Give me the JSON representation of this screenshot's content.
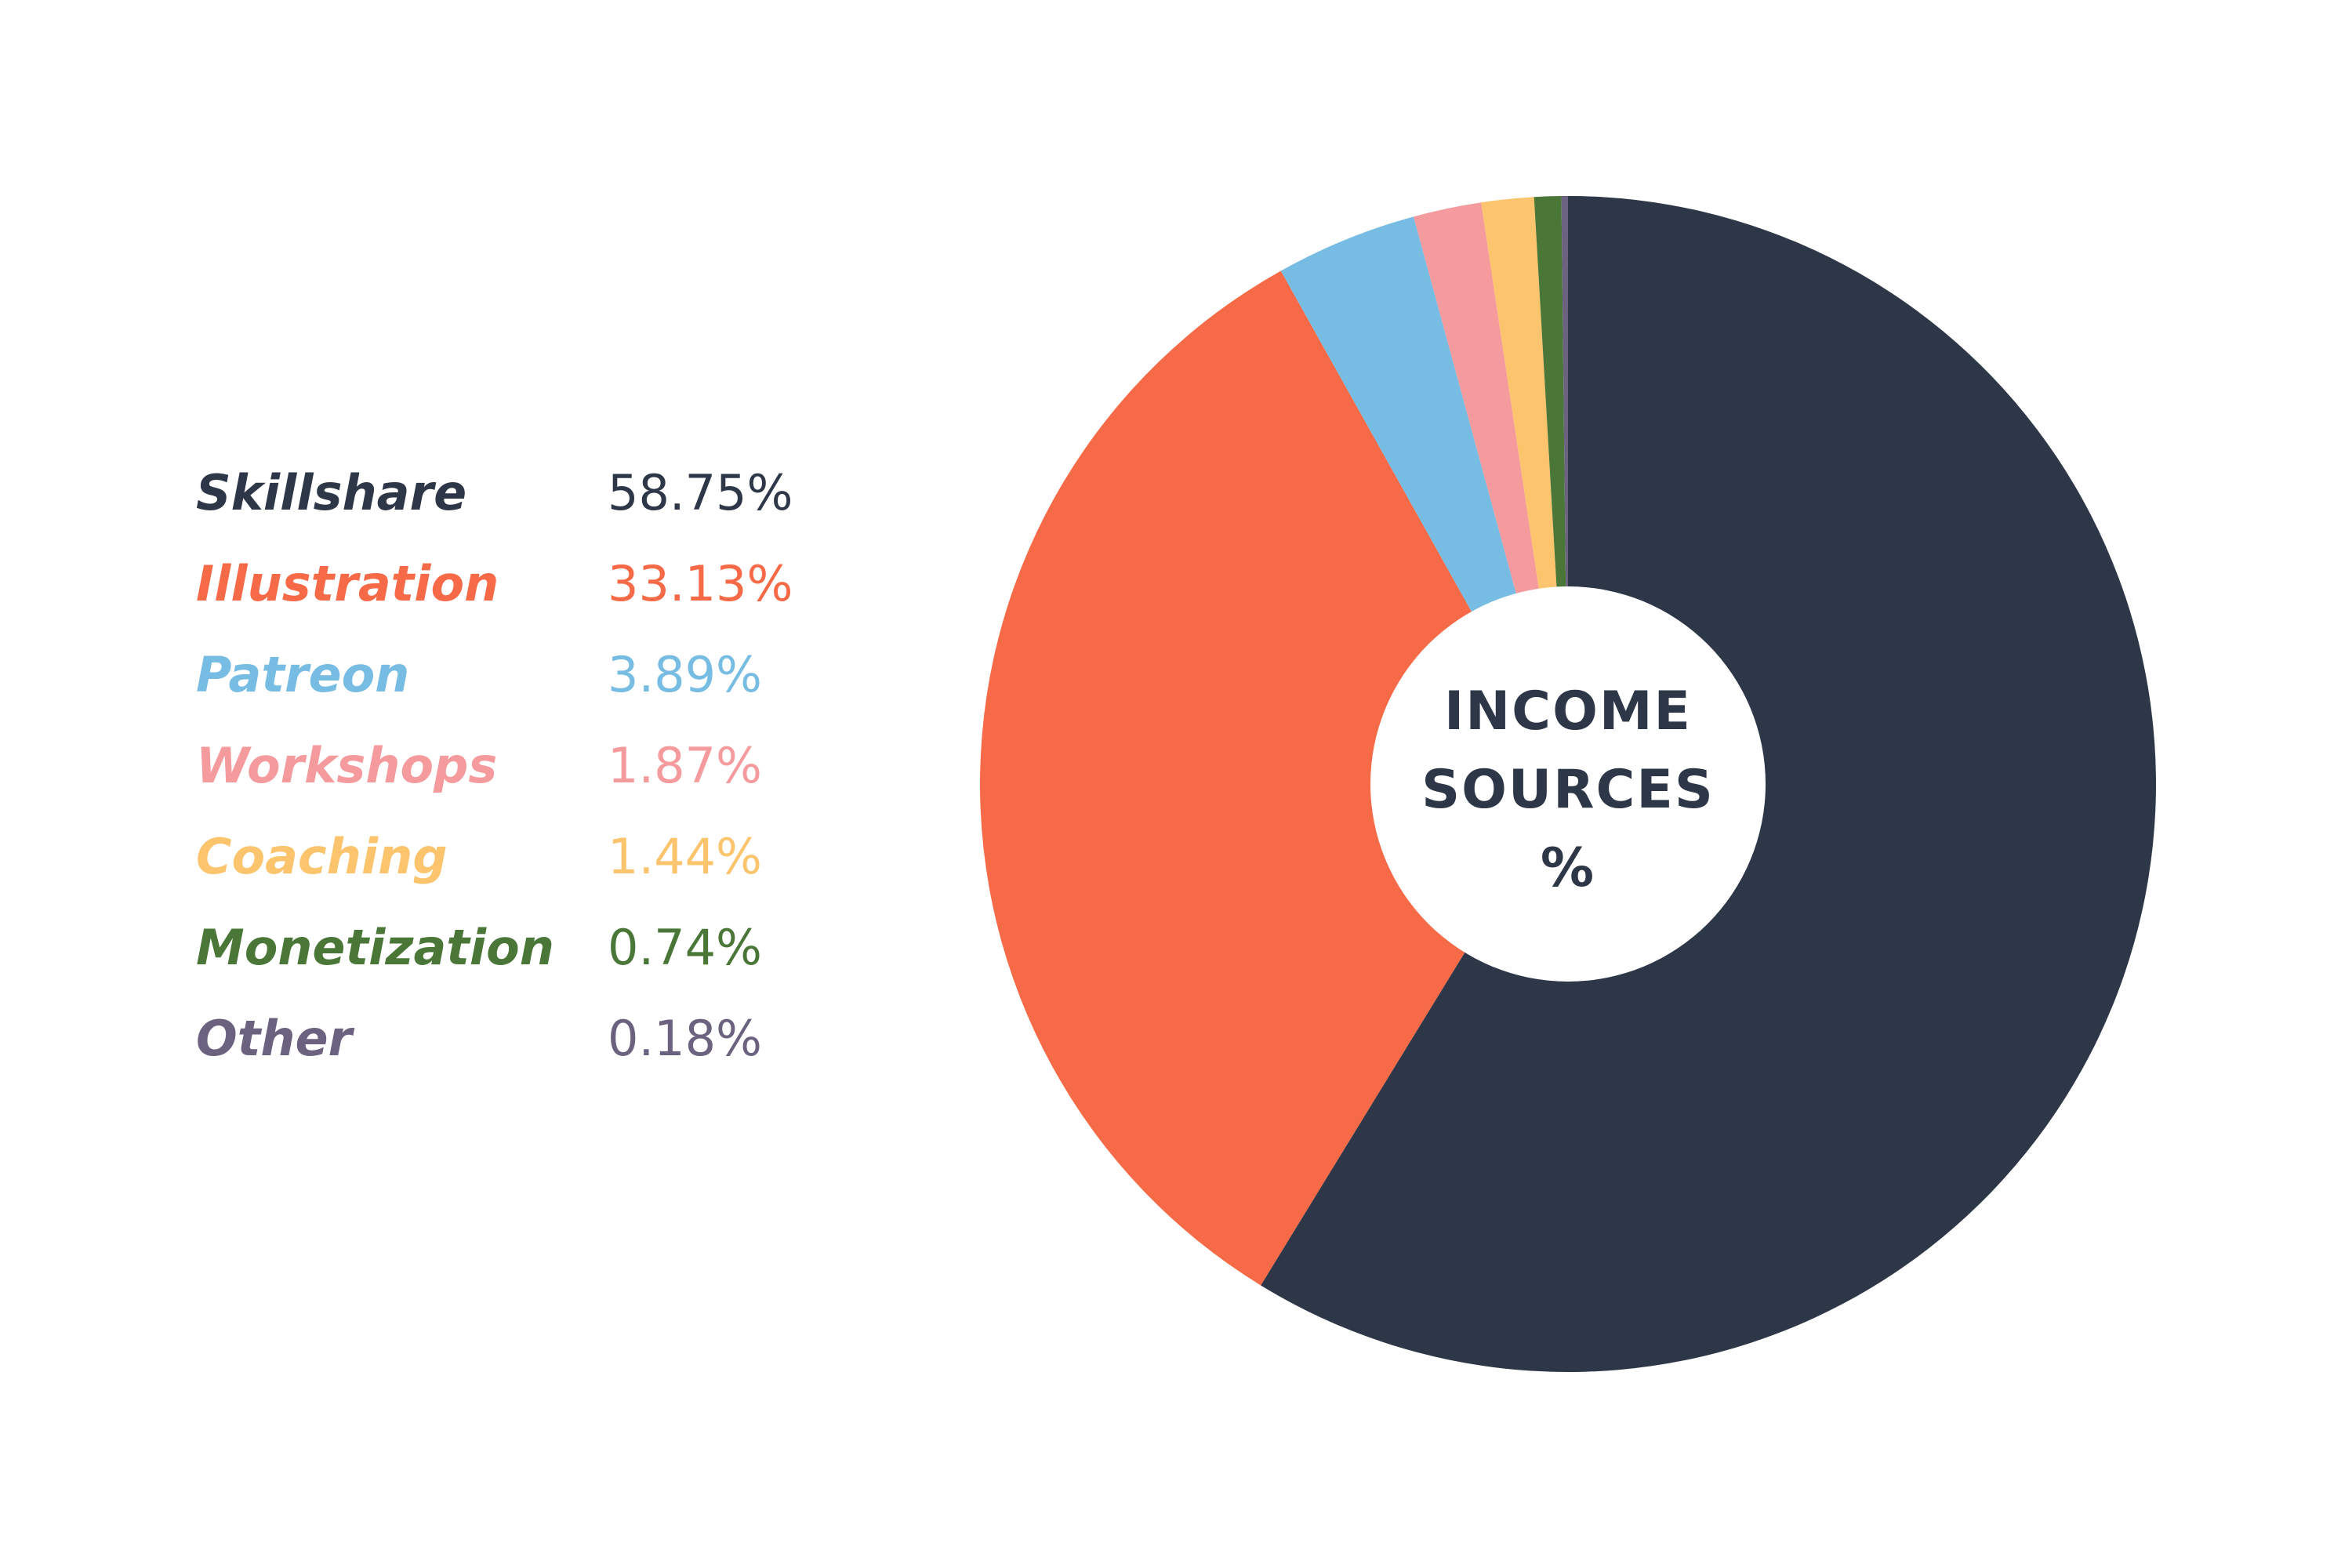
{
  "chart_data": {
    "type": "pie",
    "title": "INCOME SOURCES %",
    "title_lines": [
      "INCOME",
      "SOURCES",
      "%"
    ],
    "legend_placement": "left",
    "slices": [
      {
        "label": "Skillshare",
        "value": 58.75,
        "display": "58.75%",
        "color": "#2e3748"
      },
      {
        "label": "Illustration",
        "value": 33.13,
        "display": "33.13%",
        "color": "#f76a47"
      },
      {
        "label": "Patreon",
        "value": 3.89,
        "display": "3.89%",
        "color": "#77bce2"
      },
      {
        "label": "Workshops",
        "value": 1.87,
        "display": "1.87%",
        "color": "#f59a9d"
      },
      {
        "label": "Coaching",
        "value": 1.44,
        "display": "1.44%",
        "color": "#fbc46d"
      },
      {
        "label": "Monetization",
        "value": 0.74,
        "display": "0.74%",
        "color": "#4a7738"
      },
      {
        "label": "Other",
        "value": 0.18,
        "display": "0.18%",
        "color": "#6b6280"
      }
    ]
  }
}
